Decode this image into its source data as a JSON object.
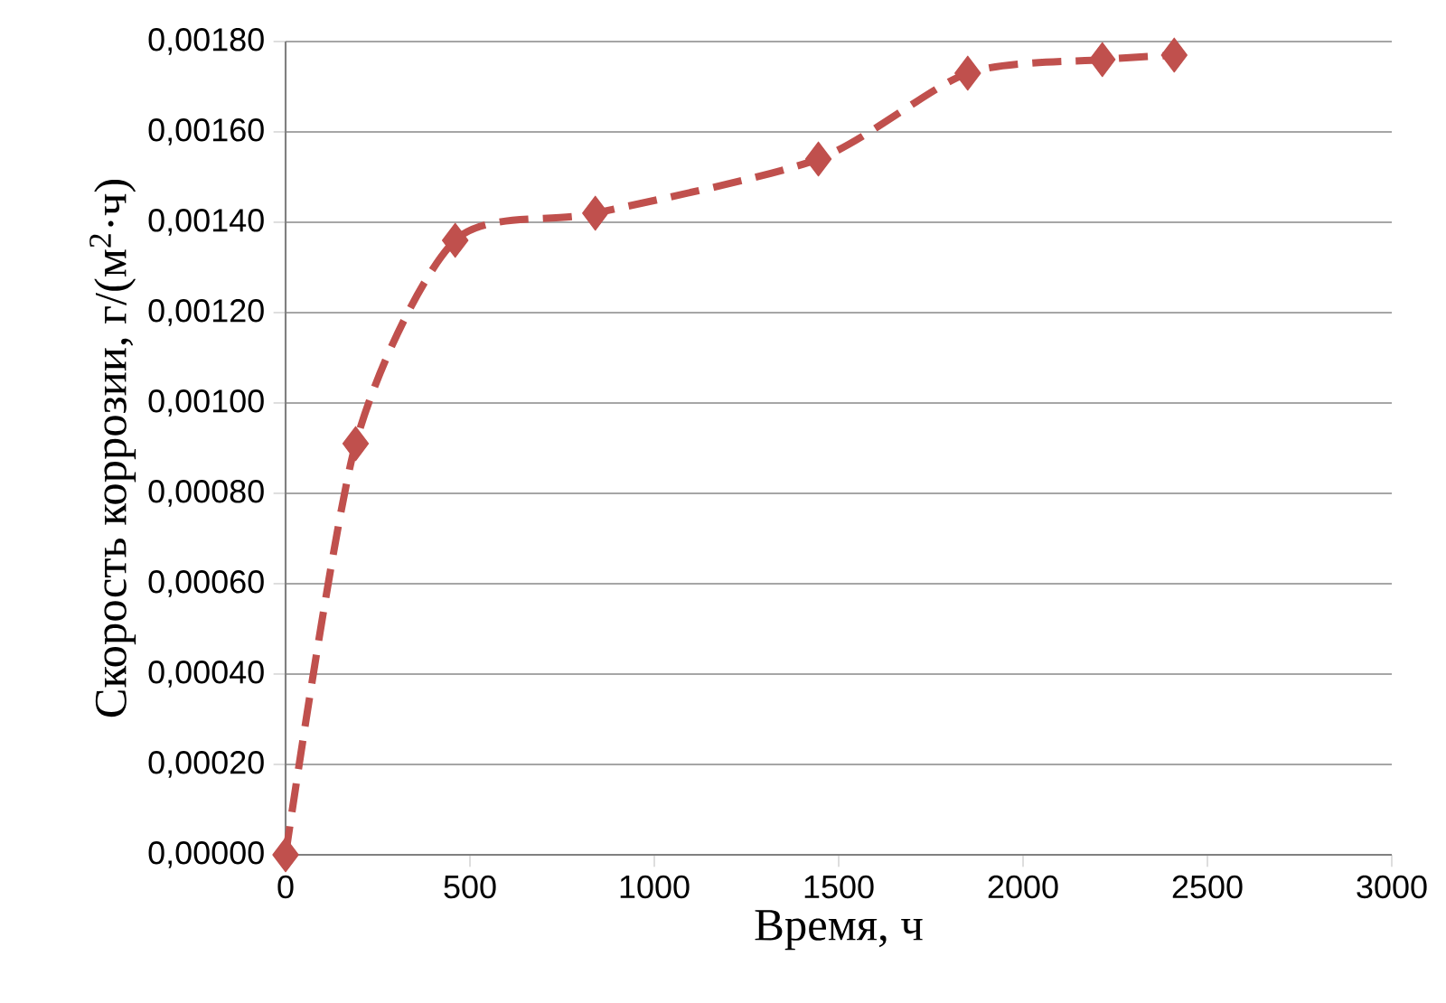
{
  "chart_data": {
    "type": "line",
    "xlabel": "Время, ч",
    "ylabel": "Скорость коррозии, г/(м$^{2}$·ч)",
    "x": [
      0,
      190,
      460,
      840,
      1445,
      1850,
      2215,
      2410
    ],
    "values": [
      0.0,
      0.00091,
      0.00136,
      0.00142,
      0.00154,
      0.00173,
      0.00176,
      0.00177
    ],
    "color": "#c0504d",
    "marker": "diamond",
    "line_style": "dashed",
    "grid": "y",
    "xlim": [
      0,
      3000
    ],
    "xticks": [
      0,
      500,
      1000,
      1500,
      2000,
      2500,
      3000
    ],
    "ylim": [
      0,
      0.0018
    ],
    "yticks": [
      {
        "value": 0,
        "label": "0,00000"
      },
      {
        "value": 0.0002,
        "label": "0,00020"
      },
      {
        "value": 0.0004,
        "label": "0,00040"
      },
      {
        "value": 0.0006,
        "label": "0,00060"
      },
      {
        "value": 0.0008,
        "label": "0,00080"
      },
      {
        "value": 0.001,
        "label": "0,00100"
      },
      {
        "value": 0.0012,
        "label": "0,00120"
      },
      {
        "value": 0.0014,
        "label": "0,00140"
      },
      {
        "value": 0.0016,
        "label": "0,00160"
      },
      {
        "value": 0.0018,
        "label": "0,00180"
      }
    ]
  }
}
